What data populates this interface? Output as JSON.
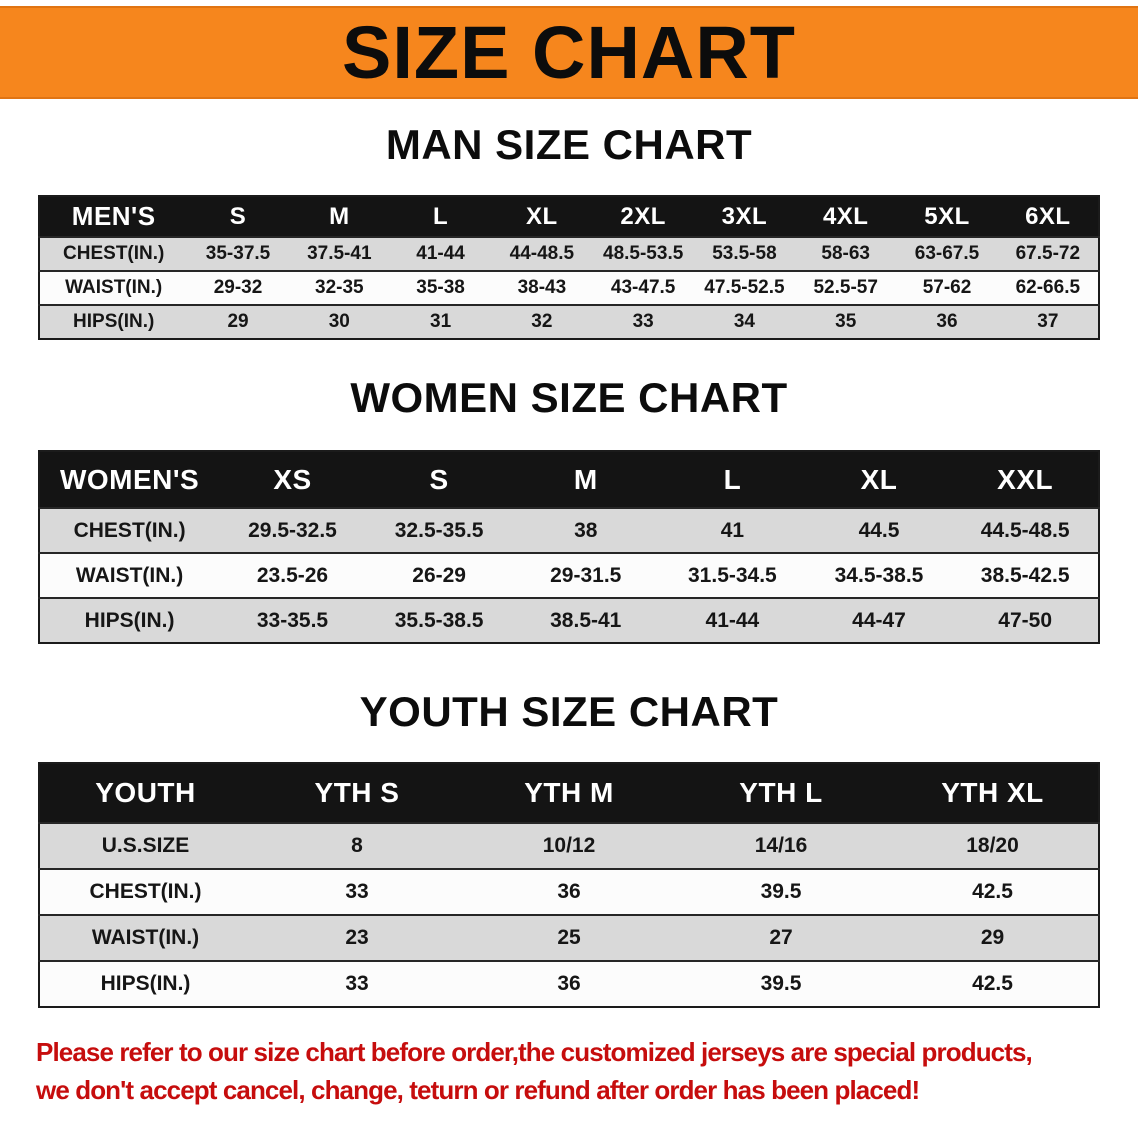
{
  "banner": {
    "title": "SIZE CHART"
  },
  "sections": [
    {
      "heading": "MAN SIZE CHART",
      "table": {
        "header": [
          "MEN'S",
          "S",
          "M",
          "L",
          "XL",
          "2XL",
          "3XL",
          "4XL",
          "5XL",
          "6XL"
        ],
        "rows": [
          [
            "CHEST(IN.)",
            "35-37.5",
            "37.5-41",
            "41-44",
            "44-48.5",
            "48.5-53.5",
            "53.5-58",
            "58-63",
            "63-67.5",
            "67.5-72"
          ],
          [
            "WAIST(IN.)",
            "29-32",
            "32-35",
            "35-38",
            "38-43",
            "43-47.5",
            "47.5-52.5",
            "52.5-57",
            "57-62",
            "62-66.5"
          ],
          [
            "HIPS(IN.)",
            "29",
            "30",
            "31",
            "32",
            "33",
            "34",
            "35",
            "36",
            "37"
          ]
        ]
      }
    },
    {
      "heading": "WOMEN SIZE CHART",
      "table": {
        "header": [
          "WOMEN'S",
          "XS",
          "S",
          "M",
          "L",
          "XL",
          "XXL"
        ],
        "rows": [
          [
            "CHEST(IN.)",
            "29.5-32.5",
            "32.5-35.5",
            "38",
            "41",
            "44.5",
            "44.5-48.5"
          ],
          [
            "WAIST(IN.)",
            "23.5-26",
            "26-29",
            "29-31.5",
            "31.5-34.5",
            "34.5-38.5",
            "38.5-42.5"
          ],
          [
            "HIPS(IN.)",
            "33-35.5",
            "35.5-38.5",
            "38.5-41",
            "41-44",
            "44-47",
            "47-50"
          ]
        ]
      }
    },
    {
      "heading": "YOUTH SIZE CHART",
      "table": {
        "header": [
          "YOUTH",
          "YTH S",
          "YTH M",
          "YTH L",
          "YTH XL"
        ],
        "rows": [
          [
            "U.S.SIZE",
            "8",
            "10/12",
            "14/16",
            "18/20"
          ],
          [
            "CHEST(IN.)",
            "33",
            "36",
            "39.5",
            "42.5"
          ],
          [
            "WAIST(IN.)",
            "23",
            "25",
            "27",
            "29"
          ],
          [
            "HIPS(IN.)",
            "33",
            "36",
            "39.5",
            "42.5"
          ]
        ]
      }
    }
  ],
  "notice": {
    "line1": "Please refer to our size chart before order,the customized jerseys are special products,",
    "line2": "we don't accept cancel, change, teturn or refund after order has been placed!"
  },
  "colors": {
    "banner_orange": "#f6861d",
    "table_header_black": "#141414",
    "row_gray": "#d9d9d9",
    "notice_red": "#c60d0d"
  }
}
